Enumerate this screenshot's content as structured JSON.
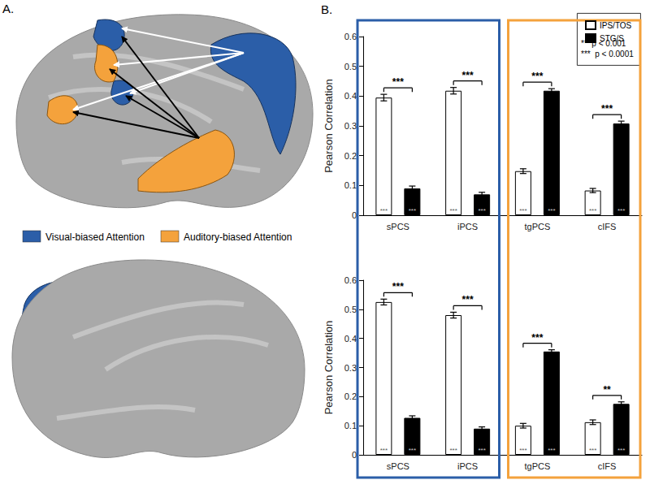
{
  "panel_a": {
    "label": "A.",
    "legend": [
      {
        "label": "Visual-biased Attention",
        "color": "#2b5ea8"
      },
      {
        "label": "Auditory-biased Attention",
        "color": "#f4a23c"
      }
    ]
  },
  "panel_b_label": "B.",
  "chart_data": [
    {
      "type": "bar",
      "y_label": "Pearson Correlation",
      "categories": [
        "sPCS",
        "iPCS",
        "tgPCS",
        "cIFS"
      ],
      "ylim": [
        0,
        0.6
      ],
      "yticks": [
        0,
        0.1,
        0.2,
        0.3,
        0.4,
        0.5,
        0.6
      ],
      "grid": false,
      "legend": "upper right",
      "significance_key": [
        "**  p < 0.001",
        "***  p < 0.0001"
      ],
      "comparisons": [
        "***",
        "***",
        "***",
        "***"
      ],
      "series": [
        {
          "name": "IPS/TOS",
          "color": "#ffffff",
          "values": [
            0.395,
            0.418,
            0.148,
            0.083
          ],
          "errors": [
            0.011,
            0.011,
            0.008,
            0.007
          ],
          "significance": [
            "***",
            "***",
            "***",
            "***"
          ]
        },
        {
          "name": "STG/S",
          "color": "#000000",
          "values": [
            0.09,
            0.07,
            0.418,
            0.308
          ],
          "errors": [
            0.008,
            0.007,
            0.007,
            0.008
          ],
          "significance": [
            "***",
            "***",
            "***",
            "***"
          ]
        }
      ]
    },
    {
      "type": "bar",
      "y_label": "Pearson Correlation",
      "categories": [
        "sPCS",
        "iPCS",
        "tgPCS",
        "cIFS"
      ],
      "ylim": [
        0,
        0.6
      ],
      "yticks": [
        0,
        0.1,
        0.2,
        0.3,
        0.4,
        0.5,
        0.6
      ],
      "grid": false,
      "comparisons": [
        "***",
        "***",
        "***",
        "**"
      ],
      "series": [
        {
          "name": "IPS/TOS",
          "color": "#ffffff",
          "values": [
            0.525,
            0.48,
            0.1,
            0.112
          ],
          "errors": [
            0.01,
            0.01,
            0.008,
            0.008
          ],
          "significance": [
            "***",
            "***",
            "***",
            "***"
          ]
        },
        {
          "name": "STG/S",
          "color": "#000000",
          "values": [
            0.127,
            0.09,
            0.355,
            0.175
          ],
          "errors": [
            0.007,
            0.006,
            0.006,
            0.007
          ],
          "significance": [
            "***",
            "***",
            "***",
            "***"
          ]
        }
      ]
    }
  ]
}
